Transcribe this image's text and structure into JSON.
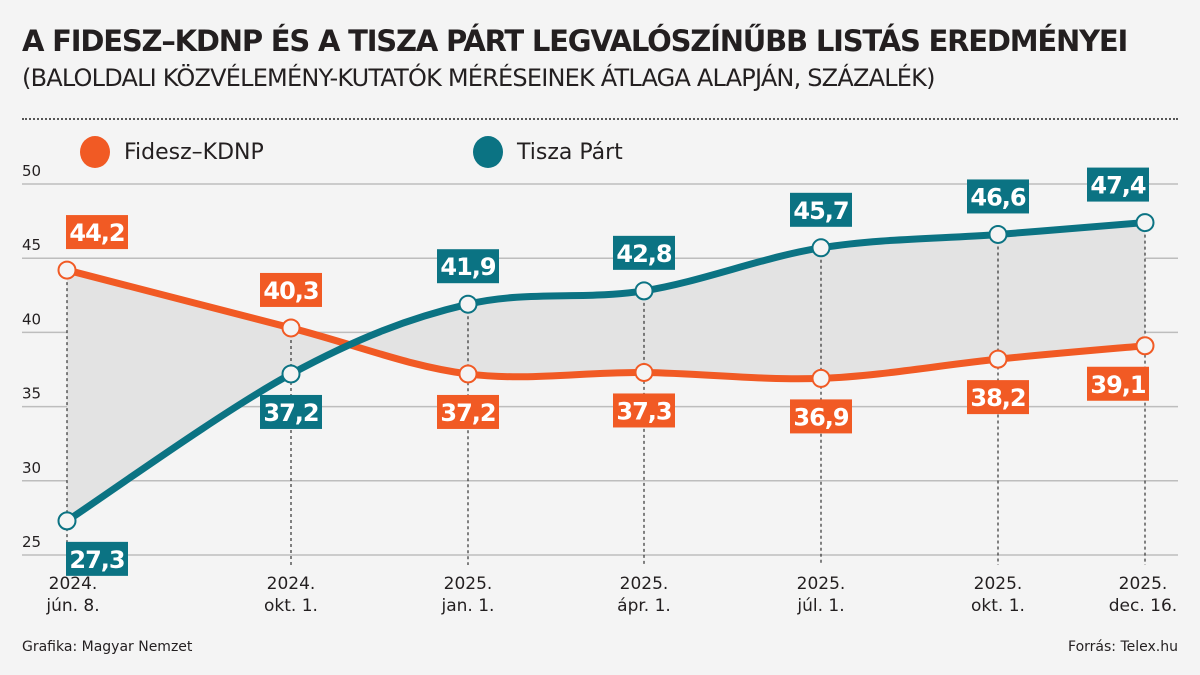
{
  "header": {
    "title": "A FIDESZ–KDNP ÉS A TISZA PÁRT LEGVALÓSZÍNŰBB LISTÁS EREDMÉNYEI",
    "subtitle": "(BALOLDALI KÖZVÉLEMÉNY-KUTATÓK MÉRÉSEINEK ÁTLAGA ALAPJÁN, SZÁZALÉK)"
  },
  "footer": {
    "credit": "Grafika: Magyar Nemzet",
    "source": "Forrás: Telex.hu"
  },
  "colors": {
    "fidesz": "#f15a24",
    "tisza": "#0b7383",
    "fill": "#e3e3e3",
    "background": "#f4f4f4"
  },
  "chart_data": {
    "type": "line",
    "title": "A FIDESZ–KDNP ÉS A TISZA PÁRT LEGVALÓSZÍNŰBB LISTÁS EREDMÉNYEI",
    "subtitle": "(BALOLDALI KÖZVÉLEMÉNY-KUTATÓK MÉRÉSEINEK ÁTLAGA ALAPJÁN, SZÁZALÉK)",
    "categories": [
      [
        "2024.",
        "jún. 8."
      ],
      [
        "2024.",
        "okt. 1."
      ],
      [
        "2025.",
        "jan. 1."
      ],
      [
        "2025.",
        "ápr. 1."
      ],
      [
        "2025.",
        "júl. 1."
      ],
      [
        "2025.",
        "okt. 1."
      ],
      [
        "2025.",
        "dec. 16."
      ]
    ],
    "x_dates": [
      "2024-06-08",
      "2024-10-01",
      "2025-01-01",
      "2025-04-01",
      "2025-07-01",
      "2025-10-01",
      "2025-12-16"
    ],
    "series": [
      {
        "name": "Fidesz–KDNP",
        "values": [
          44.2,
          40.3,
          37.2,
          37.3,
          36.9,
          38.2,
          39.1
        ],
        "labels": [
          "44,2",
          "40,3",
          "37,2",
          "37,3",
          "36,9",
          "38,2",
          "39,1"
        ]
      },
      {
        "name": "Tisza Párt",
        "values": [
          27.3,
          37.2,
          41.9,
          42.8,
          45.7,
          46.6,
          47.4
        ],
        "labels": [
          "27,3",
          "37,2",
          "41,9",
          "42,8",
          "45,7",
          "46,6",
          "47,4"
        ]
      }
    ],
    "ylim": [
      25,
      50
    ],
    "yticks": [
      "25",
      "30",
      "35",
      "40",
      "45",
      "50"
    ],
    "grid": true,
    "legend": "top-left",
    "area_between_series": true
  }
}
